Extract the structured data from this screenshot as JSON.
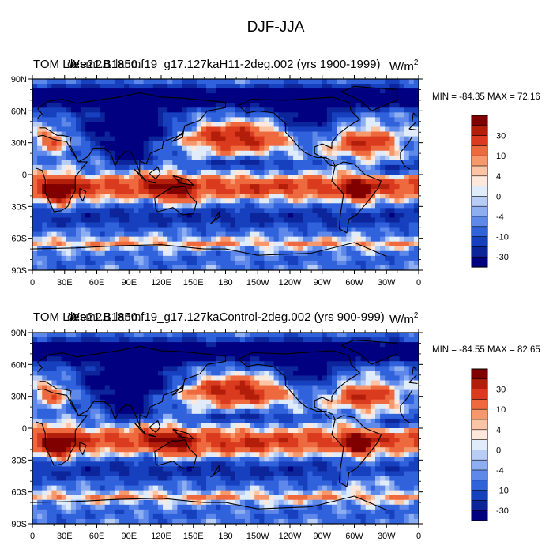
{
  "figure": {
    "title": "DJF-JJA"
  },
  "chart_data": [
    {
      "type": "heatmap",
      "left_title": "TOM LW",
      "title": "b.e21.B1850.f19_g17.127kaH11-2deg.002 (yrs 1900-1999)",
      "overlap_title": "cesm2.1 lanm",
      "units_base": "W/m",
      "units_exp": "2",
      "stats_text": "MIN = -84.35 MAX =  72.16",
      "min": -84.35,
      "max": 72.16,
      "x_ticks": [
        "0",
        "30E",
        "60E",
        "90E",
        "120E",
        "150E",
        "180",
        "150W",
        "120W",
        "90W",
        "60W",
        "30W",
        "0"
      ],
      "y_ticks": [
        "90N",
        "60N",
        "30N",
        "0",
        "30S",
        "60S",
        "90S"
      ],
      "colorbar_levels": [
        "30",
        "10",
        "4",
        "0",
        "-4",
        "-10",
        "-30"
      ],
      "colors": [
        "#800000",
        "#B21E0A",
        "#DA3A1E",
        "#EE6A3E",
        "#F7976C",
        "#FBC4A4",
        "#FEE8DC",
        "#E1ECFB",
        "#B8CDF6",
        "#8DAEF1",
        "#5E89EA",
        "#3062DC",
        "#1740BE",
        "#0D259A",
        "#000080"
      ]
    },
    {
      "type": "heatmap",
      "left_title": "TOM LW",
      "title": "b.e21.B1850.f19_g17.127kaControl-2deg.002 (yrs 900-999)",
      "overlap_title": "cesm2.1 lanm",
      "units_base": "W/m",
      "units_exp": "2",
      "stats_text": "MIN = -84.55 MAX =  82.65",
      "min": -84.55,
      "max": 82.65,
      "x_ticks": [
        "0",
        "30E",
        "60E",
        "90E",
        "120E",
        "150E",
        "180",
        "150W",
        "120W",
        "90W",
        "60W",
        "30W",
        "0"
      ],
      "y_ticks": [
        "90N",
        "60N",
        "30N",
        "0",
        "30S",
        "60S",
        "90S"
      ],
      "colorbar_levels": [
        "30",
        "10",
        "4",
        "0",
        "-4",
        "-10",
        "-30"
      ],
      "colors": [
        "#800000",
        "#B21E0A",
        "#DA3A1E",
        "#EE6A3E",
        "#F7976C",
        "#FBC4A4",
        "#FEE8DC",
        "#E1ECFB",
        "#B8CDF6",
        "#8DAEF1",
        "#5E89EA",
        "#3062DC",
        "#1740BE",
        "#0D259A",
        "#000080"
      ]
    }
  ]
}
